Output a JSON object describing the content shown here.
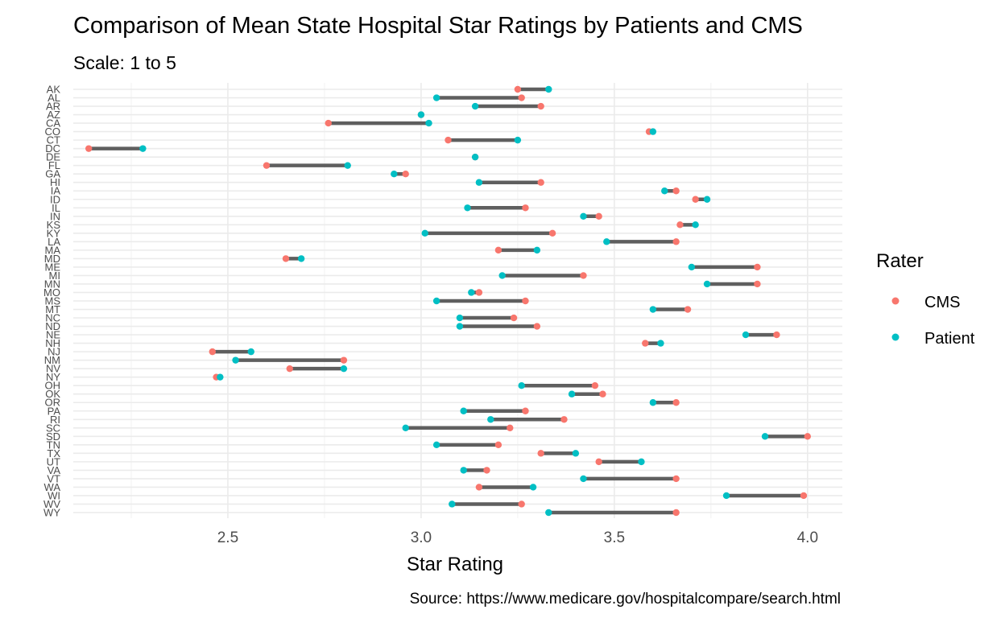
{
  "chart_data": {
    "type": "dumbbell",
    "title": "Comparison of Mean State Hospital Star Ratings by Patients and CMS",
    "subtitle": "Scale: 1 to 5",
    "xlabel": "Star Rating",
    "ylabel": "",
    "caption": "Source: https://www.medicare.gov/hospitalcompare/search.html",
    "xlim": [
      2.1,
      4.09
    ],
    "x_ticks": [
      2.5,
      3.0,
      3.5,
      4.0
    ],
    "x_tick_labels": [
      "2.5",
      "3.0",
      "3.5",
      "4.0"
    ],
    "grid": true,
    "legend": {
      "title": "Rater",
      "placement": "right",
      "entries": [
        {
          "label": "CMS",
          "color": "#F8766D"
        },
        {
          "label": "Patient",
          "color": "#00BFC4"
        }
      ]
    },
    "colors": {
      "cms": "#F8766D",
      "patient": "#00BFC4",
      "segment": "#5f5f5f",
      "grid": "#ebebeb"
    },
    "categories": [
      "AK",
      "AL",
      "AR",
      "AZ",
      "CA",
      "CO",
      "CT",
      "DC",
      "DE",
      "FL",
      "GA",
      "HI",
      "IA",
      "ID",
      "IL",
      "IN",
      "KS",
      "KY",
      "LA",
      "MA",
      "MD",
      "ME",
      "MI",
      "MN",
      "MO",
      "MS",
      "MT",
      "NC",
      "ND",
      "NE",
      "NH",
      "NJ",
      "NM",
      "NV",
      "NY",
      "OH",
      "OK",
      "OR",
      "PA",
      "RI",
      "SC",
      "SD",
      "TN",
      "TX",
      "UT",
      "VA",
      "VT",
      "WA",
      "WI",
      "WV",
      "WY"
    ],
    "series": [
      {
        "name": "CMS",
        "values": [
          3.25,
          3.26,
          3.31,
          3.0,
          2.76,
          3.59,
          3.07,
          2.14,
          3.14,
          2.6,
          2.96,
          3.31,
          3.66,
          3.71,
          3.27,
          3.46,
          3.67,
          3.34,
          3.66,
          3.2,
          2.65,
          3.87,
          3.42,
          3.87,
          3.15,
          3.27,
          3.69,
          3.24,
          3.3,
          3.92,
          3.58,
          2.46,
          2.8,
          2.66,
          2.47,
          3.45,
          3.47,
          3.66,
          3.27,
          3.37,
          3.23,
          4.0,
          3.2,
          3.31,
          3.46,
          3.17,
          3.66,
          3.15,
          3.99,
          3.26,
          3.66
        ]
      },
      {
        "name": "Patient",
        "values": [
          3.33,
          3.04,
          3.14,
          3.0,
          3.02,
          3.6,
          3.25,
          2.28,
          3.14,
          2.81,
          2.93,
          3.15,
          3.63,
          3.74,
          3.12,
          3.42,
          3.71,
          3.01,
          3.48,
          3.3,
          2.69,
          3.7,
          3.21,
          3.74,
          3.13,
          3.04,
          3.6,
          3.1,
          3.1,
          3.84,
          3.62,
          2.56,
          2.52,
          2.8,
          2.48,
          3.26,
          3.39,
          3.6,
          3.11,
          3.18,
          2.96,
          3.89,
          3.04,
          3.4,
          3.57,
          3.11,
          3.42,
          3.29,
          3.79,
          3.08,
          3.33
        ]
      }
    ]
  }
}
